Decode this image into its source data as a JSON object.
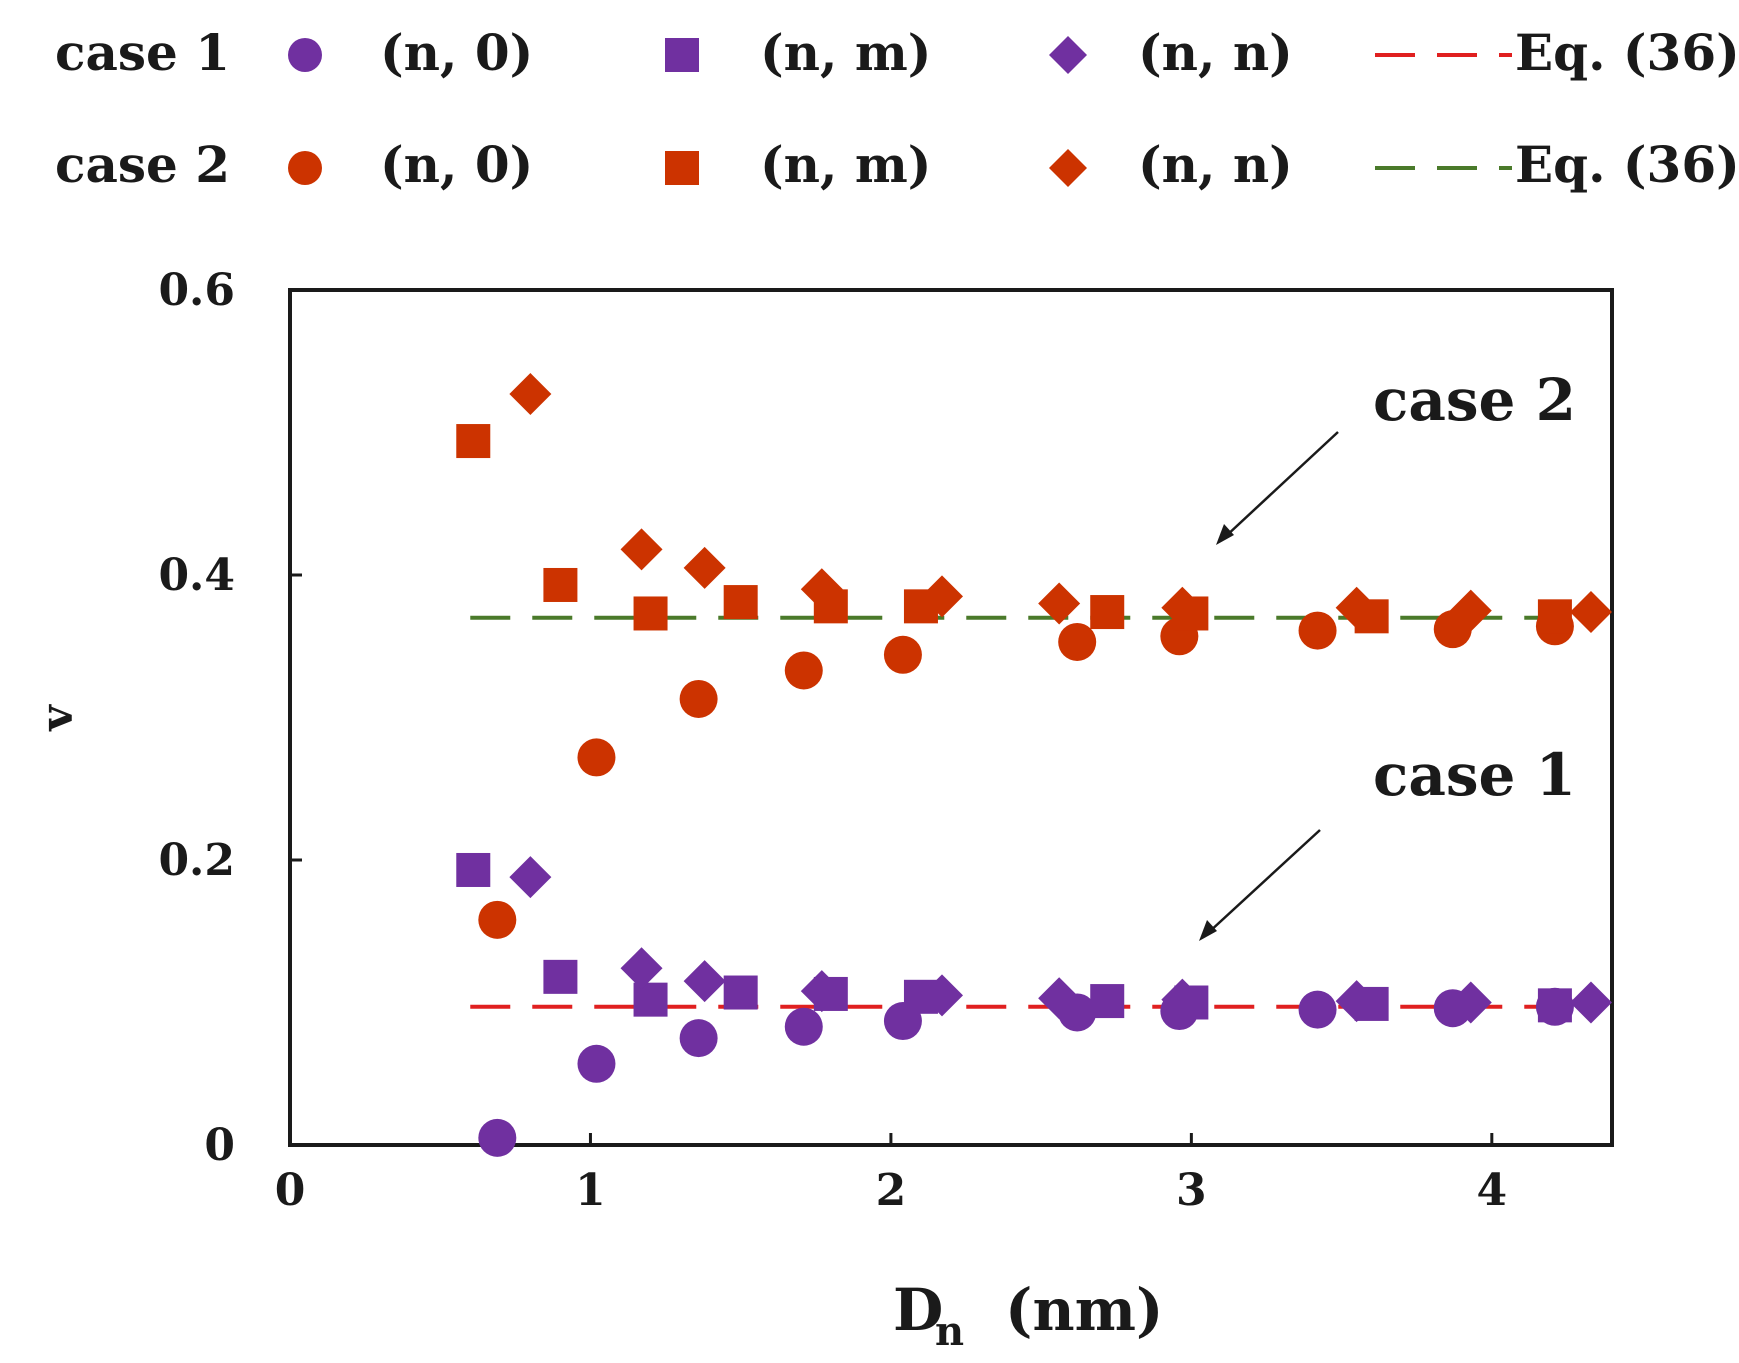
{
  "chart_data": {
    "type": "scatter",
    "title": "",
    "xlabel": "D",
    "xlabel_sub": "n",
    "xlabel_unit": "(nm)",
    "ylabel": "v",
    "xlim": [
      0,
      4.4
    ],
    "ylim": [
      0,
      0.6
    ],
    "x_ticks": [
      "0",
      "1",
      "2",
      "3",
      "4"
    ],
    "y_ticks": [
      "0",
      "0.2",
      "0.4",
      "0.6"
    ],
    "colors": {
      "case1": "#7030a0",
      "case2": "#cc3300",
      "eq36_case1": "#e02020",
      "eq36_case2": "#4a7a2a"
    },
    "legend": {
      "rows": [
        {
          "case_label": "case 1",
          "items": [
            "(n, 0)",
            "(n, m)",
            "(n, n)",
            "Eq. (36)"
          ]
        },
        {
          "case_label": "case 2",
          "items": [
            "(n, 0)",
            "(n, m)",
            "(n, n)",
            "Eq. (36)"
          ]
        }
      ]
    },
    "annotations": [
      {
        "text": "case 2",
        "arrow_to": [
          3.1,
          0.42
        ]
      },
      {
        "text": "case 1",
        "arrow_to": [
          3.05,
          0.14
        ]
      }
    ],
    "series": [
      {
        "name": "case 1 (n, 0)",
        "marker": "circle",
        "color": "#7030a0",
        "points": [
          [
            0.69,
            0.005
          ],
          [
            1.02,
            0.057
          ],
          [
            1.36,
            0.075
          ],
          [
            1.71,
            0.083
          ],
          [
            2.04,
            0.087
          ],
          [
            2.62,
            0.093
          ],
          [
            2.96,
            0.094
          ],
          [
            3.42,
            0.095
          ],
          [
            3.87,
            0.096
          ],
          [
            4.21,
            0.097
          ]
        ]
      },
      {
        "name": "case 1 (n, m)",
        "marker": "square",
        "color": "#7030a0",
        "points": [
          [
            0.61,
            0.193
          ],
          [
            0.9,
            0.118
          ],
          [
            1.2,
            0.102
          ],
          [
            1.5,
            0.107
          ],
          [
            1.8,
            0.106
          ],
          [
            2.1,
            0.104
          ],
          [
            2.72,
            0.101
          ],
          [
            3.0,
            0.1
          ],
          [
            3.6,
            0.099
          ],
          [
            4.21,
            0.098
          ]
        ]
      },
      {
        "name": "case 1 (n, n)",
        "marker": "diamond",
        "color": "#7030a0",
        "points": [
          [
            0.8,
            0.188
          ],
          [
            1.17,
            0.124
          ],
          [
            1.38,
            0.115
          ],
          [
            1.77,
            0.108
          ],
          [
            2.17,
            0.105
          ],
          [
            2.56,
            0.103
          ],
          [
            2.97,
            0.102
          ],
          [
            3.55,
            0.101
          ],
          [
            3.93,
            0.1
          ],
          [
            4.33,
            0.1
          ]
        ]
      },
      {
        "name": "case 2 (n, 0)",
        "marker": "circle",
        "color": "#cc3300",
        "points": [
          [
            0.69,
            0.158
          ],
          [
            1.02,
            0.272
          ],
          [
            1.36,
            0.313
          ],
          [
            1.71,
            0.333
          ],
          [
            2.04,
            0.344
          ],
          [
            2.62,
            0.353
          ],
          [
            2.96,
            0.357
          ],
          [
            3.42,
            0.361
          ],
          [
            3.87,
            0.362
          ],
          [
            4.21,
            0.364
          ]
        ]
      },
      {
        "name": "case 2 (n, m)",
        "marker": "square",
        "color": "#cc3300",
        "points": [
          [
            0.61,
            0.494
          ],
          [
            0.9,
            0.393
          ],
          [
            1.2,
            0.373
          ],
          [
            1.5,
            0.381
          ],
          [
            1.8,
            0.378
          ],
          [
            2.1,
            0.378
          ],
          [
            2.72,
            0.374
          ],
          [
            3.0,
            0.373
          ],
          [
            3.6,
            0.371
          ],
          [
            4.21,
            0.371
          ]
        ]
      },
      {
        "name": "case 2 (n, n)",
        "marker": "diamond",
        "color": "#cc3300",
        "points": [
          [
            0.8,
            0.527
          ],
          [
            1.17,
            0.418
          ],
          [
            1.38,
            0.405
          ],
          [
            1.77,
            0.39
          ],
          [
            2.17,
            0.385
          ],
          [
            2.56,
            0.38
          ],
          [
            2.97,
            0.377
          ],
          [
            3.55,
            0.377
          ],
          [
            3.93,
            0.375
          ],
          [
            4.33,
            0.374
          ]
        ]
      },
      {
        "name": "case 1 Eq. (36)",
        "marker": "dashed-line",
        "color": "#e02020",
        "points": [
          [
            0.6,
            0.097
          ],
          [
            4.3,
            0.097
          ]
        ]
      },
      {
        "name": "case 2 Eq. (36)",
        "marker": "dashed-line",
        "color": "#4a7a2a",
        "points": [
          [
            0.6,
            0.37
          ],
          [
            4.3,
            0.37
          ]
        ]
      }
    ]
  }
}
